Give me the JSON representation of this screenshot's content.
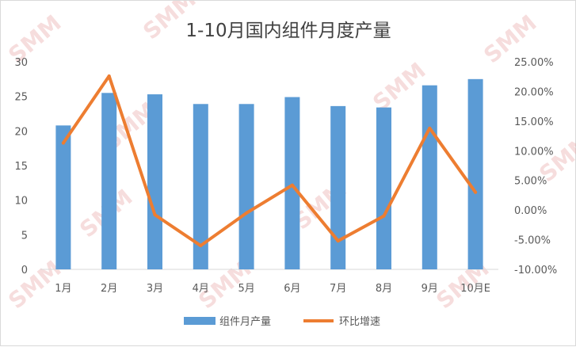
{
  "chart_data": {
    "type": "bar",
    "title": "1-10月国内组件月度产量",
    "categories": [
      "1月",
      "2月",
      "3月",
      "4月",
      "5月",
      "6月",
      "7月",
      "8月",
      "9月",
      "10月E"
    ],
    "series": [
      {
        "name": "组件月产量",
        "type": "bar",
        "axis": "left",
        "color": "#5b9bd5",
        "values": [
          20.8,
          25.5,
          25.3,
          23.9,
          23.9,
          24.9,
          23.6,
          23.4,
          26.6,
          27.5
        ]
      },
      {
        "name": "环比增速",
        "type": "line",
        "axis": "right",
        "color": "#ed7d31",
        "values": [
          11.3,
          22.6,
          -0.8,
          -6.0,
          -0.5,
          4.2,
          -5.2,
          -1.0,
          13.8,
          3.0
        ]
      }
    ],
    "y_left": {
      "ylim": [
        0,
        30
      ],
      "ticks": [
        "0",
        "5",
        "10",
        "15",
        "20",
        "25",
        "30"
      ]
    },
    "y_right": {
      "ylim": [
        -10,
        25
      ],
      "ticks": [
        "-10.00%",
        "-5.00%",
        "0.00%",
        "5.00%",
        "10.00%",
        "15.00%",
        "20.00%",
        "25.00%"
      ]
    },
    "grid": false,
    "legend": "bottom"
  },
  "watermark": "SMM"
}
